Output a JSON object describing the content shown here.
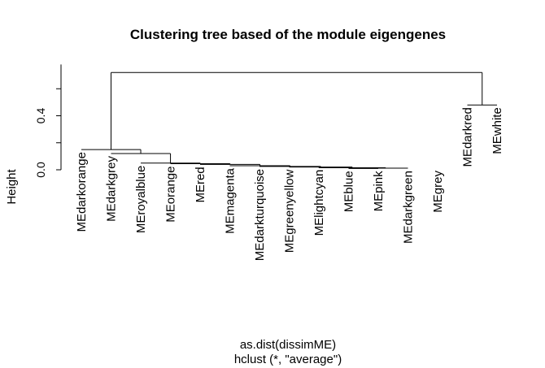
{
  "chart_data": {
    "type": "dendrogram",
    "title": "Clustering tree based of the module eigengenes",
    "ylabel": "Height",
    "xlabel_lines": [
      "as.dist(dissimME)",
      "hclust (*, \"average\")"
    ],
    "ylim": [
      0,
      0.8
    ],
    "yticks": [
      {
        "value": 0.0,
        "label": "0.0"
      },
      {
        "value": 0.4,
        "label": "0.4"
      }
    ],
    "leaves": [
      {
        "label": "MEdarkorange",
        "height": 0.15
      },
      {
        "label": "MEdarkgrey",
        "height": 0.12
      },
      {
        "label": "MEroyalblue",
        "height": 0.05
      },
      {
        "label": "MEorange",
        "height": 0.045
      },
      {
        "label": "MEred",
        "height": 0.04
      },
      {
        "label": "MEmagenta",
        "height": 0.03
      },
      {
        "label": "MEdarkturquoise",
        "height": 0.025
      },
      {
        "label": "MEgreenyellow",
        "height": 0.02
      },
      {
        "label": "MElightcyan",
        "height": 0.02
      },
      {
        "label": "MEblue",
        "height": 0.01
      },
      {
        "label": "MEpink",
        "height": 0.01
      },
      {
        "label": "MEdarkgreen",
        "height": 0.012
      },
      {
        "label": "MEgrey",
        "height": 0.012
      },
      {
        "label": "MEdarkred",
        "height": 0.48
      },
      {
        "label": "MEwhite",
        "height": 0.48
      }
    ],
    "merges": [
      {
        "left": 10,
        "right": 11,
        "height": 0.01
      },
      {
        "left": -1,
        "right": 12,
        "height": 0.012
      },
      {
        "left": 9,
        "right": -2,
        "height": 0.015
      },
      {
        "left": 8,
        "right": -3,
        "height": 0.02
      },
      {
        "left": 7,
        "right": -4,
        "height": 0.025
      },
      {
        "left": 6,
        "right": -5,
        "height": 0.03
      },
      {
        "left": 5,
        "right": -6,
        "height": 0.04
      },
      {
        "left": 4,
        "right": -7,
        "height": 0.045
      },
      {
        "left": 3,
        "right": -8,
        "height": 0.05
      },
      {
        "left": 2,
        "right": -9,
        "height": 0.12
      },
      {
        "left": 1,
        "right": -10,
        "height": 0.15
      },
      {
        "left": 14,
        "right": 15,
        "height": 0.48
      },
      {
        "left": -11,
        "right": -12,
        "height": 0.72
      }
    ]
  }
}
